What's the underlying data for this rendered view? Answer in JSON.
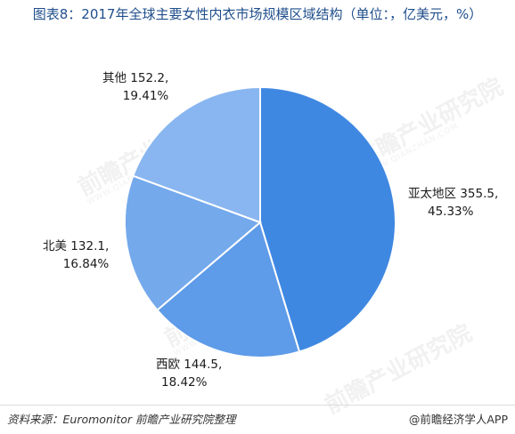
{
  "title": "图表8：2017年全球主要女性内衣市场规模区域结构（单位：，亿美元，%）",
  "chart_data": {
    "type": "pie",
    "title": "图表8：2017年全球主要女性内衣市场规模区域结构（单位：，亿美元，%）",
    "start_angle_deg": 0,
    "direction": "clockwise",
    "slices": [
      {
        "name": "亚太地区",
        "value": 355.5,
        "percent": 45.33,
        "value_label": "355.5,",
        "percent_label": "45.33%",
        "color": "#3f88e2"
      },
      {
        "name": "西欧",
        "value": 144.5,
        "percent": 18.42,
        "value_label": "144.5,",
        "percent_label": "18.42%",
        "color": "#5e9be8"
      },
      {
        "name": "北美",
        "value": 132.1,
        "percent": 16.84,
        "value_label": "132.1,",
        "percent_label": "16.84%",
        "color": "#74a9ec"
      },
      {
        "name": "其他",
        "value": 152.2,
        "percent": 19.41,
        "value_label": "152.2,",
        "percent_label": "19.41%",
        "color": "#89b6f0"
      }
    ]
  },
  "footer": {
    "source": "资料来源：Euromonitor 前瞻产业研究院整理",
    "brand": "@前瞻经济学人APP"
  },
  "watermark": {
    "text": "前瞻产业研究院",
    "sub": "WWW.QIANZHAN.COM"
  }
}
